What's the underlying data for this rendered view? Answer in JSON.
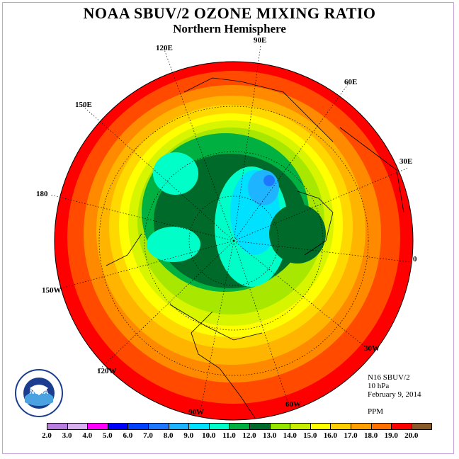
{
  "title": "NOAA SBUV/2 OZONE MIXING RATIO",
  "subtitle": "Northern Hemisphere",
  "longitude_labels": [
    "90E",
    "60E",
    "30E",
    "0",
    "30W",
    "60W",
    "90W",
    "120W",
    "150W",
    "180",
    "150E",
    "120E"
  ],
  "info": {
    "instrument": "N16 SBUV/2",
    "level": "10 hPa",
    "date": "February 9, 2014",
    "units": "PPM"
  },
  "colorbar": {
    "values": [
      "2.0",
      "3.0",
      "4.0",
      "5.0",
      "6.0",
      "7.0",
      "8.0",
      "9.0",
      "10.0",
      "11.0",
      "12.0",
      "13.0",
      "14.0",
      "15.0",
      "16.0",
      "17.0",
      "18.0",
      "19.0",
      "20.0"
    ],
    "colors": [
      "#b87fe0",
      "#d9b0f0",
      "#ff00ff",
      "#0000ff",
      "#0040ff",
      "#1e78ff",
      "#1eb4ff",
      "#00e0ff",
      "#00ffc8",
      "#00b040",
      "#006a2a",
      "#96e600",
      "#c8f000",
      "#ffff00",
      "#ffd000",
      "#ffa000",
      "#ff7000",
      "#ff0000",
      "#8b5a2b"
    ]
  },
  "logo_text": "NOAA",
  "logo_ring_text": "NATIONAL OCEANIC AND ATMOSPHERIC ADMINISTRATION · U.S. DEPARTMENT OF COMMERCE"
}
